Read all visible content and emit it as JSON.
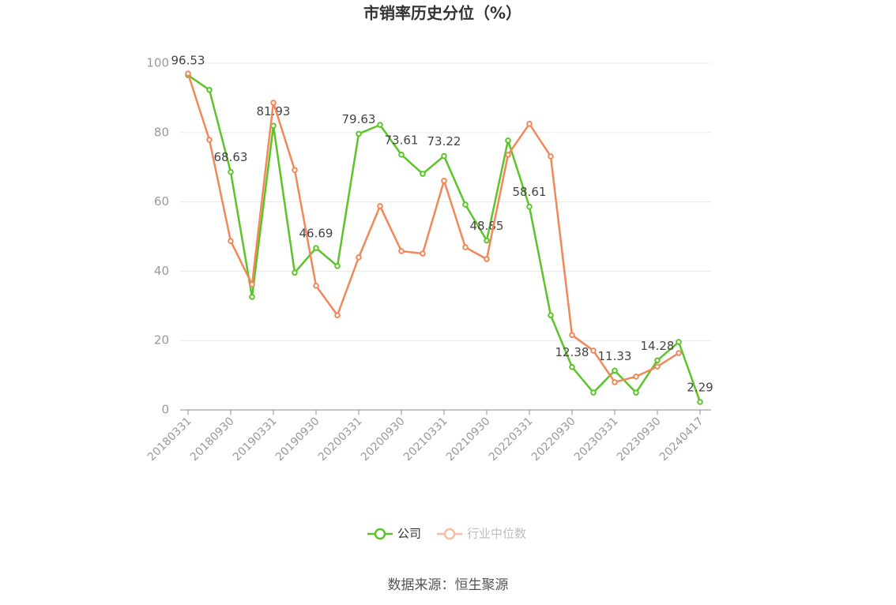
{
  "chart_data": {
    "type": "line",
    "title": "市销率历史分位（%）",
    "source": "数据来源：恒生聚源",
    "categories": [
      "20180331",
      null,
      "20180930",
      null,
      "20190331",
      null,
      "20190930",
      null,
      "20200331",
      null,
      "20200930",
      null,
      "20210331",
      null,
      "20210930",
      null,
      "20220331",
      null,
      "20220930",
      null,
      "20230331",
      null,
      "20230930",
      null,
      "20240417"
    ],
    "series": [
      {
        "name": "公司",
        "color": "#5cc428",
        "values": [
          96.53,
          92.3,
          68.63,
          32.6,
          81.93,
          39.6,
          46.69,
          41.5,
          79.63,
          82.2,
          73.61,
          68.1,
          73.22,
          59.2,
          48.85,
          77.7,
          58.61,
          27.3,
          12.38,
          5.0,
          11.33,
          5.0,
          14.28,
          19.6,
          2.29
        ],
        "value_labels": [
          "96.53",
          null,
          "68.63",
          null,
          "81.93",
          null,
          "46.69",
          null,
          "79.63",
          null,
          "73.61",
          null,
          "73.22",
          null,
          "48.85",
          null,
          "58.61",
          null,
          "12.38",
          null,
          "11.33",
          null,
          "14.28",
          null,
          "2.29"
        ]
      },
      {
        "name": "行业中位数",
        "color": "#f0885a",
        "values": [
          97.0,
          77.9,
          48.7,
          36.2,
          88.6,
          69.2,
          35.8,
          27.3,
          44.0,
          58.8,
          45.8,
          45.1,
          66.1,
          46.9,
          43.5,
          73.6,
          82.5,
          73.1,
          21.6,
          17.1,
          8.0,
          9.6,
          12.5,
          16.4,
          null
        ]
      }
    ],
    "ylim": [
      0,
      100
    ],
    "yticks": [
      0,
      20,
      40,
      60,
      80,
      100
    ],
    "grid": true
  }
}
